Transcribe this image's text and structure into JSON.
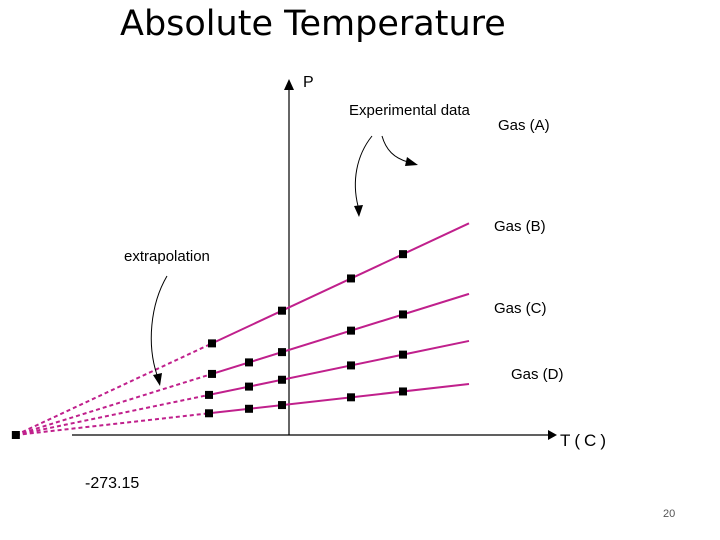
{
  "slide": {
    "title": "Absolute Temperature",
    "page_number": "20"
  },
  "chart_data": {
    "type": "line",
    "xlabel": "T(C)",
    "ylabel": "P",
    "x_intercept_label": "-273.15",
    "x_intercept": -273.15,
    "annotations": [
      {
        "text": "Experimental data",
        "points_to": "Gas (A)"
      },
      {
        "text": "extrapolation",
        "points_to": "Gas (A)"
      }
    ],
    "line_color": "#c0208c",
    "marker_color": "#000000",
    "series": [
      {
        "name": "Gas (A)",
        "slope": 1.35,
        "x": [
          -77,
          -7,
          62,
          114
        ]
      },
      {
        "name": "Gas (B)",
        "slope": 0.9,
        "x": [
          -77,
          -40,
          -7,
          62,
          114
        ]
      },
      {
        "name": "Gas (C)",
        "slope": 0.6,
        "x": [
          -80,
          -40,
          -7,
          62,
          114
        ]
      },
      {
        "name": "Gas (D)",
        "slope": 0.325,
        "x": [
          -80,
          -40,
          -7,
          62,
          114
        ]
      }
    ]
  }
}
